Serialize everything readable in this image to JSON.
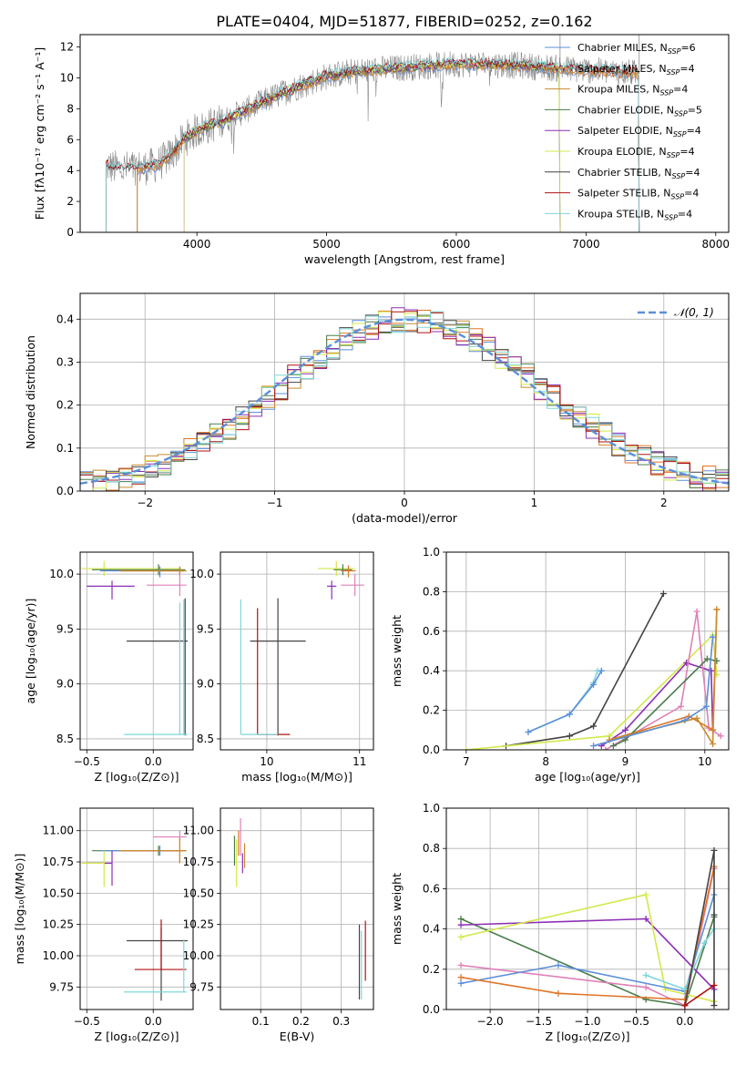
{
  "title": "PLATE=0404, MJD=51877, FIBERID=0252, z=0.162",
  "colors": {
    "chabrier_miles": "#5b8fd9",
    "salpeter_miles": "#e07528",
    "kroupa_miles": "#c98a2e",
    "chabrier_elodie": "#4a7d4a",
    "salpeter_elodie": "#8c2fb5",
    "kroupa_elodie": "#d4e84a",
    "chabrier_stelib": "#444444",
    "salpeter_stelib": "#b01010",
    "kroupa_stelib": "#7fd6d9",
    "data_gray": "#888888",
    "pink": "#e080b8",
    "normal_curve": "#5b8fd9"
  },
  "chart_data": [
    {
      "id": "spectrum",
      "type": "line",
      "xlabel": "wavelength [Angstrom, rest frame]",
      "ylabel": "Flux [fλ10⁻¹⁷ erg cm⁻² s⁻¹ A⁻¹]",
      "xlim": [
        3100,
        8100
      ],
      "ylim": [
        0,
        12.8
      ],
      "xticks": [
        "4000",
        "5000",
        "6000",
        "7000",
        "8000"
      ],
      "yticks": [
        "0",
        "2",
        "4",
        "6",
        "8",
        "10",
        "12"
      ],
      "legend_position": "top-right",
      "legend": [
        "Chabrier MILES, N_SSP=6",
        "Salpeter MILES, N_SSP=4",
        "Kroupa MILES, N_SSP=4",
        "Chabrier ELODIE, N_SSP=5",
        "Salpeter ELODIE, N_SSP=4",
        "Kroupa ELODIE, N_SSP=4",
        "Chabrier STELIB, N_SSP=4",
        "Salpeter STELIB, N_SSP=4",
        "Kroupa STELIB, N_SSP=4"
      ],
      "continuum": {
        "x": [
          3300,
          3400,
          3600,
          3700,
          3800,
          3900,
          4000,
          4200,
          4400,
          4600,
          4800,
          5000,
          5200,
          5500,
          5800,
          6000,
          6200,
          6500,
          6800,
          7000,
          7200,
          7400
        ],
        "y": [
          4.3,
          4.1,
          4.2,
          4.4,
          5.0,
          6.0,
          6.6,
          7.2,
          8.0,
          8.8,
          9.5,
          10.1,
          10.4,
          10.6,
          10.8,
          10.9,
          10.9,
          10.8,
          10.6,
          10.5,
          10.4,
          10.3
        ]
      },
      "model_ranges": {
        "MILES": [
          3540,
          7410
        ],
        "ELODIE": [
          3900,
          6800
        ],
        "STELIB": [
          3300,
          7410
        ]
      }
    },
    {
      "id": "residuals",
      "type": "line",
      "xlabel": "(data-model)/error",
      "ylabel": "Normed distribution",
      "xlim": [
        -2.5,
        2.5
      ],
      "ylim": [
        0,
        0.46
      ],
      "xticks": [
        "−2",
        "−1",
        "0",
        "1",
        "2"
      ],
      "yticks": [
        "0.0",
        "0.1",
        "0.2",
        "0.3",
        "0.4"
      ],
      "legend_position": "top-right",
      "legend": [
        "𝒩(0, 1)"
      ],
      "grid": true
    },
    {
      "id": "age_vs_Z",
      "type": "scatter",
      "xlabel": "Z [log₁₀(Z/Z⊙)]",
      "ylabel": "age  [log₁₀(age/yr)]",
      "xlim": [
        -0.55,
        0.3
      ],
      "ylim": [
        8.4,
        10.2
      ],
      "xticks": [
        "−0.5",
        "0.0"
      ],
      "yticks": [
        "8.5",
        "9.0",
        "9.5",
        "10.0"
      ],
      "grid": true,
      "points": [
        {
          "s": "kroupa_elodie",
          "x": -0.37,
          "xerr": [
            0.17,
            0.58
          ],
          "y": 10.05,
          "yerr": [
            0.07,
            0.07
          ]
        },
        {
          "s": "chabrier_elodie",
          "x": 0.04,
          "xerr": [
            0.5,
            0.2
          ],
          "y": 10.04,
          "yerr": [
            0.05,
            0.05
          ]
        },
        {
          "s": "chabrier_miles",
          "x": 0.05,
          "xerr": [
            0.45,
            0.18
          ],
          "y": 10.03,
          "yerr": [
            0.06,
            0.04
          ]
        },
        {
          "s": "salpeter_miles",
          "x": 0.2,
          "xerr": [
            0.45,
            0.05
          ],
          "y": 10.03,
          "yerr": [
            0.06,
            0.04
          ]
        },
        {
          "s": "kroupa_miles",
          "x": 0.2,
          "xerr": [
            0.45,
            0.05
          ],
          "y": 10.03,
          "yerr": [
            0.04,
            0.03
          ]
        },
        {
          "s": "pink",
          "x": 0.2,
          "xerr": [
            0.25,
            0.05
          ],
          "y": 9.9,
          "yerr": [
            0.1,
            0.1
          ]
        },
        {
          "s": "salpeter_elodie",
          "x": -0.31,
          "xerr": [
            0.19,
            0.17
          ],
          "y": 9.89,
          "yerr": [
            0.12,
            0.05
          ]
        },
        {
          "s": "chabrier_stelib",
          "x": 0.06,
          "xerr": [
            0.26,
            0.2
          ],
          "y": 9.39,
          "yerr": [
            0.0,
            0.0
          ]
        },
        {
          "s": "chabrier_stelib",
          "x": 0.24,
          "xerr": [
            0.0,
            0.0
          ],
          "y": 9.39,
          "yerr": [
            0.86,
            0.39
          ]
        },
        {
          "s": "kroupa_stelib",
          "x": 0.23,
          "xerr": [
            0.45,
            0.03
          ],
          "y": 8.54,
          "yerr": [
            0.0,
            1.23
          ]
        },
        {
          "s": "kroupa_stelib",
          "x": 0.2,
          "xerr": [
            0.0,
            0.0
          ],
          "y": 8.54,
          "yerr": [
            0.0,
            1.2
          ]
        }
      ]
    },
    {
      "id": "age_vs_mass",
      "type": "scatter",
      "xlabel": "mass [log₁₀(M/M⊙)]",
      "ylabel": "",
      "xlim": [
        9.5,
        11.15
      ],
      "ylim": [
        8.4,
        10.2
      ],
      "xticks": [
        "10",
        "11"
      ],
      "yticks": [
        "8.5",
        "9.0",
        "9.5",
        "10.0"
      ],
      "grid": true,
      "points": [
        {
          "s": "kroupa_elodie",
          "x": 10.75,
          "xerr": [
            0.2,
            0.2
          ],
          "y": 10.05,
          "yerr": [
            0.07,
            0.07
          ]
        },
        {
          "s": "chabrier_elodie",
          "x": 10.82,
          "xerr": [
            0.1,
            0.1
          ],
          "y": 10.04,
          "yerr": [
            0.05,
            0.05
          ]
        },
        {
          "s": "salpeter_elodie",
          "x": 10.7,
          "xerr": [
            0.05,
            0.05
          ],
          "y": 9.89,
          "yerr": [
            0.12,
            0.05
          ]
        },
        {
          "s": "pink",
          "x": 10.95,
          "xerr": [
            0.15,
            0.1
          ],
          "y": 9.9,
          "yerr": [
            0.1,
            0.1
          ]
        },
        {
          "s": "salpeter_miles",
          "x": 10.88,
          "xerr": [
            0.08,
            0.08
          ],
          "y": 10.03,
          "yerr": [
            0.06,
            0.05
          ]
        },
        {
          "s": "chabrier_stelib",
          "x": 10.12,
          "xerr": [
            0.3,
            0.3
          ],
          "y": 9.39,
          "yerr": [
            0.86,
            0.39
          ]
        },
        {
          "s": "salpeter_stelib",
          "x": 9.9,
          "xerr": [
            0.0,
            0.35
          ],
          "y": 8.54,
          "yerr": [
            0.0,
            1.15
          ]
        },
        {
          "s": "kroupa_stelib",
          "x": 9.72,
          "xerr": [
            0.0,
            0.4
          ],
          "y": 8.54,
          "yerr": [
            0.0,
            1.23
          ]
        }
      ]
    },
    {
      "id": "weight_vs_age",
      "type": "line",
      "xlabel": "age  [log₁₀(age/yr)]",
      "ylabel": "mass weight",
      "xlim": [
        6.75,
        10.3
      ],
      "ylim": [
        0,
        1
      ],
      "xticks": [
        "7",
        "8",
        "9",
        "10"
      ],
      "yticks": [
        "0.0",
        "0.2",
        "0.4",
        "0.6",
        "0.8",
        "1.0"
      ],
      "grid": true,
      "series": [
        {
          "s": "chabrier_stelib",
          "x": [
            7.5,
            8.3,
            8.6,
            9.48
          ],
          "y": [
            0.02,
            0.07,
            0.12,
            0.79
          ]
        },
        {
          "s": "kroupa_stelib",
          "x": [
            7.78,
            8.3,
            8.6,
            8.65
          ],
          "y": [
            0.09,
            0.18,
            0.34,
            0.4
          ]
        },
        {
          "s": "chabrier_miles",
          "x": [
            7.78,
            8.3,
            8.6,
            8.7
          ],
          "y": [
            0.09,
            0.18,
            0.33,
            0.4
          ]
        },
        {
          "s": "kroupa_elodie",
          "x": [
            7.0,
            8.8,
            10.1,
            10.15
          ],
          "y": [
            0.0,
            0.07,
            0.58,
            0.38
          ]
        },
        {
          "s": "salpeter_elodie",
          "x": [
            8.7,
            9.0,
            9.77,
            10.08,
            10.1
          ],
          "y": [
            0.02,
            0.1,
            0.44,
            0.4,
            0.1
          ]
        },
        {
          "s": "pink",
          "x": [
            8.75,
            9.7,
            9.9,
            10.05,
            10.2
          ],
          "y": [
            0.0,
            0.22,
            0.7,
            0.11,
            0.07
          ]
        },
        {
          "s": "salpeter_miles",
          "x": [
            8.8,
            9.8,
            10.1,
            10.15
          ],
          "y": [
            0.05,
            0.17,
            0.1,
            0.71
          ]
        },
        {
          "s": "chabrier_elodie",
          "x": [
            8.85,
            9.0,
            10.03,
            10.15
          ],
          "y": [
            0.02,
            0.05,
            0.46,
            0.45
          ]
        },
        {
          "s": "kroupa_miles",
          "x": [
            8.8,
            9.9,
            10.1,
            10.15
          ],
          "y": [
            0.05,
            0.16,
            0.03,
            0.71
          ]
        },
        {
          "s": "chabrier_miles",
          "x": [
            8.6,
            9.75,
            10.02,
            10.1
          ],
          "y": [
            0.02,
            0.15,
            0.22,
            0.57
          ]
        }
      ]
    },
    {
      "id": "mass_vs_Z",
      "type": "scatter",
      "xlabel": "Z [log₁₀(Z/Z⊙)]",
      "ylabel": "mass [log₁₀(M/M⊙)]",
      "xlim": [
        -0.55,
        0.3
      ],
      "ylim": [
        9.57,
        11.18
      ],
      "xticks": [
        "−0.5",
        "0.0"
      ],
      "yticks": [
        "9.75",
        "10.00",
        "10.25",
        "10.50",
        "10.75",
        "11.00"
      ],
      "grid": true,
      "points": [
        {
          "s": "pink",
          "x": 0.2,
          "xerr": [
            0.2,
            0.05
          ],
          "y": 10.95,
          "yerr": [
            0.05,
            0.05
          ]
        },
        {
          "s": "chabrier_elodie",
          "x": 0.04,
          "xerr": [
            0.5,
            0.2
          ],
          "y": 10.84,
          "yerr": [
            0.04,
            0.04
          ]
        },
        {
          "s": "chabrier_miles",
          "x": 0.05,
          "xerr": [
            0.45,
            0.16
          ],
          "y": 10.84,
          "yerr": [
            0.04,
            0.04
          ]
        },
        {
          "s": "salpeter_miles",
          "x": 0.2,
          "xerr": [
            0.45,
            0.05
          ],
          "y": 10.84,
          "yerr": [
            0.1,
            0.1
          ]
        },
        {
          "s": "kroupa_miles",
          "x": 0.2,
          "xerr": [
            0.45,
            0.05
          ],
          "y": 10.84,
          "yerr": [
            0.1,
            0.1
          ]
        },
        {
          "s": "salpeter_elodie",
          "x": -0.31,
          "xerr": [
            0.19,
            0.0
          ],
          "y": 10.74,
          "yerr": [
            0.18,
            0.1
          ]
        },
        {
          "s": "kroupa_elodie",
          "x": -0.37,
          "xerr": [
            0.17,
            0.0
          ],
          "y": 10.74,
          "yerr": [
            0.19,
            0.1
          ]
        },
        {
          "s": "chabrier_stelib",
          "x": 0.06,
          "xerr": [
            0.26,
            0.2
          ],
          "y": 10.12,
          "yerr": [
            0.48,
            0.1
          ]
        },
        {
          "s": "salpeter_stelib",
          "x": 0.06,
          "xerr": [
            0.2,
            0.19
          ],
          "y": 9.89,
          "yerr": [
            0.0,
            0.4
          ]
        },
        {
          "s": "kroupa_stelib",
          "x": 0.23,
          "xerr": [
            0.45,
            0.02
          ],
          "y": 9.71,
          "yerr": [
            0.0,
            0.42
          ]
        }
      ]
    },
    {
      "id": "mass_vs_ebv",
      "type": "scatter",
      "xlabel": "E(B-V)",
      "ylabel": "",
      "xlim": [
        0.0,
        0.38
      ],
      "ylim": [
        9.57,
        11.18
      ],
      "xticks": [
        "0.1",
        "0.2",
        "0.3"
      ],
      "yticks": [
        "9.75",
        "10.00",
        "10.25",
        "10.50",
        "10.75",
        "11.00"
      ],
      "grid": true,
      "points": [
        {
          "s": "pink",
          "x": 0.05,
          "xerr": [
            0.0,
            0.0
          ],
          "y": 10.95,
          "yerr": [
            0.15,
            0.15
          ]
        },
        {
          "s": "chabrier_elodie",
          "x": 0.035,
          "xerr": [
            0.0,
            0.0
          ],
          "y": 10.84,
          "yerr": [
            0.12,
            0.12
          ]
        },
        {
          "s": "kroupa_elodie",
          "x": 0.04,
          "xerr": [
            0.0,
            0.0
          ],
          "y": 10.74,
          "yerr": [
            0.19,
            0.19
          ]
        },
        {
          "s": "salpeter_elodie",
          "x": 0.055,
          "xerr": [
            0.0,
            0.0
          ],
          "y": 10.74,
          "yerr": [
            0.08,
            0.08
          ]
        },
        {
          "s": "kroupa_miles",
          "x": 0.06,
          "xerr": [
            0.0,
            0.0
          ],
          "y": 10.8,
          "yerr": [
            0.1,
            0.1
          ]
        },
        {
          "s": "salpeter_miles",
          "x": 0.045,
          "xerr": [
            0.0,
            0.0
          ],
          "y": 10.9,
          "yerr": [
            0.1,
            0.1
          ]
        },
        {
          "s": "chabrier_stelib",
          "x": 0.345,
          "xerr": [
            0.0,
            0.0
          ],
          "y": 9.9,
          "yerr": [
            0.25,
            0.35
          ]
        },
        {
          "s": "kroupa_stelib",
          "x": 0.35,
          "xerr": [
            0.0,
            0.0
          ],
          "y": 9.9,
          "yerr": [
            0.25,
            0.3
          ]
        },
        {
          "s": "salpeter_stelib",
          "x": 0.36,
          "xerr": [
            0.0,
            0.0
          ],
          "y": 10.0,
          "yerr": [
            0.2,
            0.28
          ]
        }
      ]
    },
    {
      "id": "weight_vs_Z",
      "type": "line",
      "xlabel": "Z [log₁₀(Z/Z⊙)]",
      "ylabel": "mass weight",
      "xlim": [
        -2.45,
        0.45
      ],
      "ylim": [
        0,
        1
      ],
      "xticks": [
        "−2.0",
        "−1.5",
        "−1.0",
        "−0.5",
        "0.0"
      ],
      "yticks": [
        "0.0",
        "0.2",
        "0.4",
        "0.6",
        "0.8",
        "1.0"
      ],
      "grid": true,
      "series": [
        {
          "s": "chabrier_elodie",
          "x": [
            -2.3,
            -0.4,
            0.0,
            0.3
          ],
          "y": [
            0.45,
            0.05,
            0.02,
            0.46
          ]
        },
        {
          "s": "salpeter_elodie",
          "x": [
            -2.3,
            -0.4,
            0.3,
            0.3
          ],
          "y": [
            0.42,
            0.45,
            0.1,
            0.04
          ]
        },
        {
          "s": "kroupa_elodie",
          "x": [
            -2.3,
            -0.4,
            -0.2,
            0.3
          ],
          "y": [
            0.36,
            0.57,
            0.1,
            0.04
          ]
        },
        {
          "s": "pink",
          "x": [
            -2.3,
            -0.4,
            0.0,
            0.3
          ],
          "y": [
            0.22,
            0.11,
            0.02,
            0.7
          ]
        },
        {
          "s": "chabrier_miles",
          "x": [
            -2.3,
            -1.3,
            0.0,
            0.3
          ],
          "y": [
            0.13,
            0.22,
            0.09,
            0.57
          ]
        },
        {
          "s": "salpeter_miles",
          "x": [
            -2.3,
            -1.3,
            0.0,
            0.3
          ],
          "y": [
            0.16,
            0.08,
            0.05,
            0.71
          ]
        },
        {
          "s": "kroupa_stelib",
          "x": [
            -0.4,
            0.0,
            0.2,
            0.3
          ],
          "y": [
            0.17,
            0.1,
            0.33,
            0.4
          ]
        },
        {
          "s": "chabrier_stelib",
          "x": [
            0.0,
            0.3,
            0.3,
            0.3
          ],
          "y": [
            0.02,
            0.79,
            0.47,
            0.02
          ]
        },
        {
          "s": "salpeter_stelib",
          "x": [
            0.0,
            0.3
          ],
          "y": [
            0.02,
            0.12
          ]
        }
      ]
    }
  ]
}
